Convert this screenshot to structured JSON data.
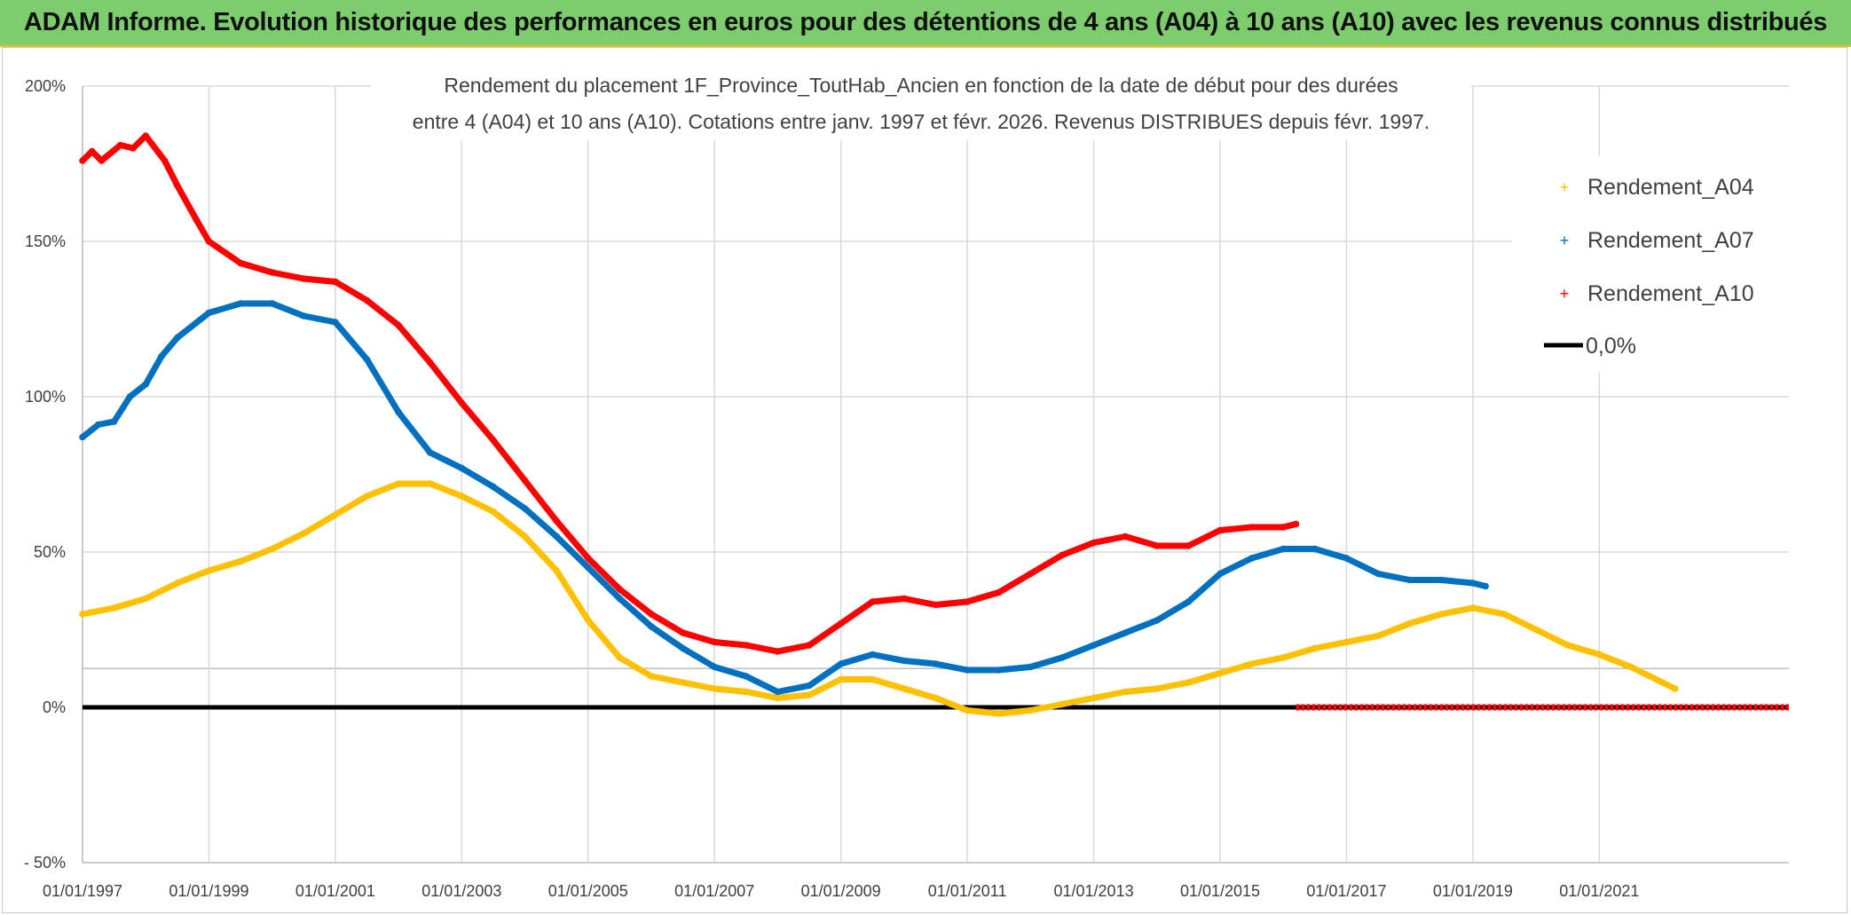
{
  "banner": {
    "title": "ADAM Informe. Evolution historique des performances en euros pour des détentions de 4 ans (A04) à 10 ans (A10) avec les revenus connus distribués"
  },
  "chart_data": {
    "type": "scatter",
    "title_lines": [
      "Rendement du placement 1F_Province_ToutHab_Ancien en fonction de la date de début pour des durées",
      "entre 4 (A04) et 10 ans (A10). Cotations entre janv. 1997 et févr. 2026. Revenus DISTRIBUES depuis févr. 1997."
    ],
    "xlabel": "",
    "ylabel": "",
    "xlim": [
      1997.0,
      2024.0
    ],
    "ylim": [
      -50,
      200
    ],
    "x_ticks": [
      1997,
      1999,
      2001,
      2003,
      2005,
      2007,
      2009,
      2011,
      2013,
      2015,
      2017,
      2019,
      2021
    ],
    "x_tick_labels": [
      "01/01/1997",
      "01/01/1999",
      "01/01/2001",
      "01/01/2003",
      "01/01/2005",
      "01/01/2007",
      "01/01/2009",
      "01/01/2011",
      "01/01/2013",
      "01/01/2015",
      "01/01/2017",
      "01/01/2019",
      "01/01/2021"
    ],
    "y_ticks": [
      -50,
      0,
      50,
      100,
      150,
      200
    ],
    "y_tick_labels": [
      "- 50%",
      "0%",
      "50%",
      "100%",
      "150%",
      "200%"
    ],
    "grid": true,
    "legend_position": "top-right",
    "series": [
      {
        "name": "Rendement_A04",
        "color": "#ffc000",
        "x": [
          1997.0,
          1997.5,
          1998.0,
          1998.5,
          1999.0,
          1999.5,
          2000.0,
          2000.5,
          2001.0,
          2001.5,
          2002.0,
          2002.5,
          2003.0,
          2003.5,
          2004.0,
          2004.5,
          2005.0,
          2005.5,
          2006.0,
          2006.5,
          2007.0,
          2007.5,
          2008.0,
          2008.5,
          2009.0,
          2009.5,
          2010.0,
          2010.5,
          2011.0,
          2011.5,
          2012.0,
          2012.5,
          2013.0,
          2013.5,
          2014.0,
          2014.5,
          2015.0,
          2015.5,
          2016.0,
          2016.5,
          2017.0,
          2017.5,
          2018.0,
          2018.5,
          2019.0,
          2019.5,
          2020.0,
          2020.5,
          2021.0,
          2021.5,
          2022.0,
          2022.2
        ],
        "values": [
          30,
          32,
          35,
          40,
          44,
          47,
          51,
          56,
          62,
          68,
          72,
          72,
          68,
          63,
          55,
          44,
          28,
          16,
          10,
          8,
          6,
          5,
          3,
          4,
          9,
          9,
          6,
          3,
          -1,
          -2,
          -1,
          1,
          3,
          5,
          6,
          8,
          11,
          14,
          16,
          19,
          21,
          23,
          27,
          30,
          32,
          30,
          25,
          20,
          17,
          13,
          8,
          6
        ]
      },
      {
        "name": "Rendement_A07",
        "color": "#0070c0",
        "x": [
          1997.0,
          1997.25,
          1997.5,
          1997.75,
          1998.0,
          1998.25,
          1998.5,
          1999.0,
          1999.5,
          2000.0,
          2000.5,
          2001.0,
          2001.5,
          2002.0,
          2002.5,
          2003.0,
          2003.5,
          2004.0,
          2004.5,
          2005.0,
          2005.5,
          2006.0,
          2006.5,
          2007.0,
          2007.5,
          2008.0,
          2008.5,
          2009.0,
          2009.5,
          2010.0,
          2010.5,
          2011.0,
          2011.5,
          2012.0,
          2012.5,
          2013.0,
          2013.5,
          2014.0,
          2014.5,
          2015.0,
          2015.5,
          2016.0,
          2016.5,
          2017.0,
          2017.5,
          2018.0,
          2018.5,
          2019.0,
          2019.2
        ],
        "values": [
          87,
          91,
          92,
          100,
          104,
          113,
          119,
          127,
          130,
          130,
          126,
          124,
          112,
          95,
          82,
          77,
          71,
          64,
          55,
          45,
          35,
          26,
          19,
          13,
          10,
          5,
          7,
          14,
          17,
          15,
          14,
          12,
          12,
          13,
          16,
          20,
          24,
          28,
          34,
          43,
          48,
          51,
          51,
          48,
          43,
          41,
          41,
          40,
          39
        ]
      },
      {
        "name": "Rendement_A10",
        "color": "#ff0000",
        "x": [
          1997.0,
          1997.15,
          1997.3,
          1997.6,
          1997.8,
          1998.0,
          1998.3,
          1998.5,
          1998.8,
          1999.0,
          1999.5,
          2000.0,
          2000.5,
          2001.0,
          2001.5,
          2002.0,
          2002.5,
          2003.0,
          2003.5,
          2004.0,
          2004.5,
          2005.0,
          2005.5,
          2006.0,
          2006.5,
          2007.0,
          2007.5,
          2008.0,
          2008.5,
          2009.0,
          2009.5,
          2010.0,
          2010.5,
          2011.0,
          2011.5,
          2012.0,
          2012.5,
          2013.0,
          2013.5,
          2014.0,
          2014.5,
          2015.0,
          2015.5,
          2016.0,
          2016.2
        ],
        "values": [
          176,
          179,
          176,
          181,
          180,
          184,
          176,
          168,
          157,
          150,
          143,
          140,
          138,
          137,
          131,
          123,
          111,
          98,
          86,
          73,
          60,
          48,
          38,
          30,
          24,
          21,
          20,
          18,
          20,
          27,
          34,
          35,
          33,
          34,
          37,
          43,
          49,
          53,
          55,
          52,
          52,
          57,
          58,
          58,
          59
        ]
      },
      {
        "name": "0,0%",
        "color": "#000000",
        "x": [
          1997.0,
          2024.0
        ],
        "values": [
          0,
          0
        ]
      }
    ],
    "extra_markers": {
      "series": "Rendement_A10",
      "x": [
        2016.2,
        2024.0
      ],
      "values": [
        0,
        0
      ]
    }
  }
}
